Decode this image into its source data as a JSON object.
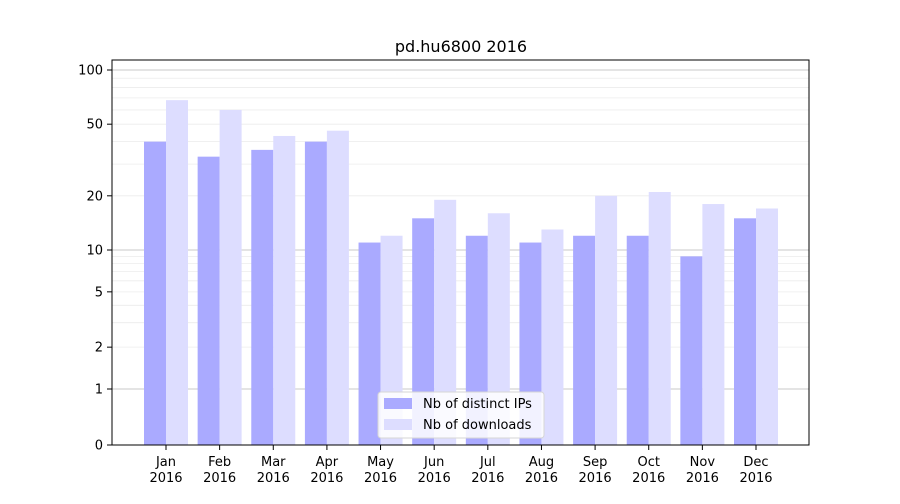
{
  "chart_data": {
    "type": "bar",
    "title": "pd.hu6800 2016",
    "xlabel": "",
    "ylabel": "",
    "yscale": "symlog",
    "ylim": [
      0,
      110
    ],
    "categories": [
      [
        "Jan",
        "2016"
      ],
      [
        "Feb",
        "2016"
      ],
      [
        "Mar",
        "2016"
      ],
      [
        "Apr",
        "2016"
      ],
      [
        "May",
        "2016"
      ],
      [
        "Jun",
        "2016"
      ],
      [
        "Jul",
        "2016"
      ],
      [
        "Aug",
        "2016"
      ],
      [
        "Sep",
        "2016"
      ],
      [
        "Oct",
        "2016"
      ],
      [
        "Nov",
        "2016"
      ],
      [
        "Dec",
        "2016"
      ]
    ],
    "yticks": [
      {
        "value": 0,
        "label": "0"
      },
      {
        "value": 1,
        "label": "1"
      },
      {
        "value": 2,
        "label": "2"
      },
      {
        "value": 5,
        "label": "5"
      },
      {
        "value": 10,
        "label": "10"
      },
      {
        "value": 20,
        "label": "20"
      },
      {
        "value": 50,
        "label": "50"
      },
      {
        "value": 100,
        "label": "100"
      }
    ],
    "series": [
      {
        "name": "Nb of distinct IPs",
        "color": "#aaaaff",
        "values": [
          40,
          33,
          36,
          40,
          11,
          15,
          12,
          11,
          12,
          12,
          9,
          15
        ]
      },
      {
        "name": "Nb of downloads",
        "color": "#ddddff",
        "values": [
          68,
          60,
          43,
          46,
          12,
          19,
          16,
          13,
          20,
          21,
          18,
          17
        ]
      }
    ],
    "grid": true,
    "legend": "bottom-center"
  }
}
